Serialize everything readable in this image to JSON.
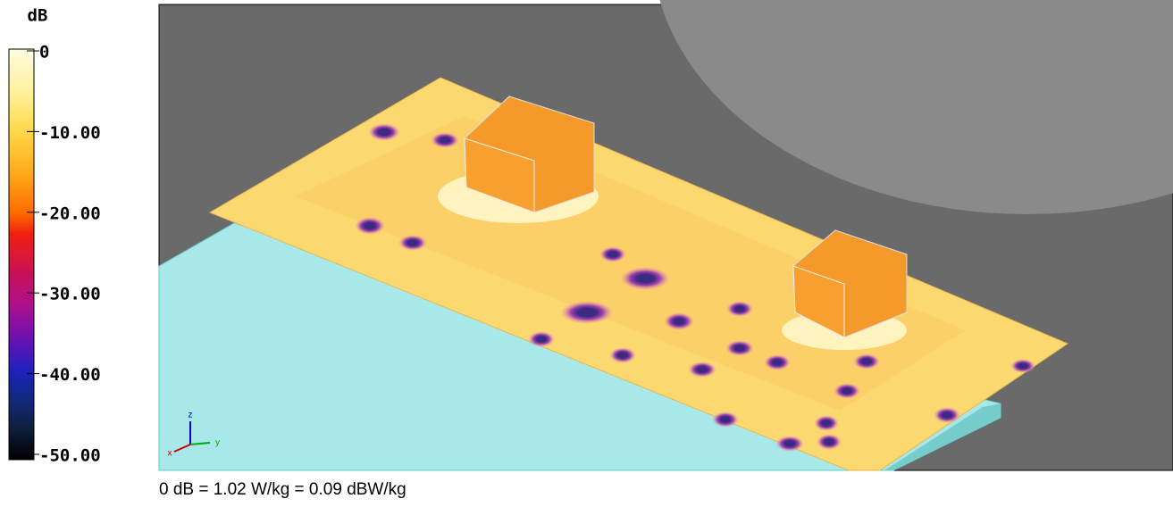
{
  "colorbar": {
    "unit": "dB",
    "labels": [
      "0",
      "-10.00",
      "-20.00",
      "-30.00",
      "-40.00",
      "-50.00"
    ]
  },
  "axes_triad": {
    "z": "z",
    "y": "y",
    "x": "x"
  },
  "caption": "0 dB = 1.02 W/kg = 0.09 dBW/kg"
}
